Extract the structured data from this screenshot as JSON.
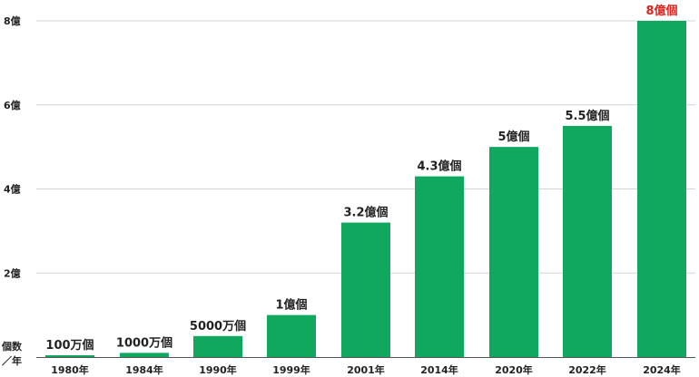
{
  "chart_data": {
    "type": "bar",
    "categories": [
      "1980年",
      "1984年",
      "1990年",
      "1999年",
      "2001年",
      "2014年",
      "2020年",
      "2022年",
      "2024年"
    ],
    "values": [
      0.01,
      0.1,
      0.5,
      1,
      3.2,
      4.3,
      5,
      5.5,
      8
    ],
    "data_labels": [
      "100万個",
      "1000万個",
      "5000万個",
      "1億個",
      "3.2億個",
      "4.3億個",
      "5億個",
      "5.5億個",
      "8億個"
    ],
    "highlight_index": 8,
    "y_ticks": [
      {
        "value": 2,
        "label": "2億"
      },
      {
        "value": 4,
        "label": "4億"
      },
      {
        "value": 6,
        "label": "6億"
      },
      {
        "value": 8,
        "label": "8億"
      }
    ],
    "ylim": [
      0,
      8
    ],
    "ylabel_top": "個数",
    "ylabel_bottom": "／年",
    "grid": true,
    "colors": {
      "bar": "#0fa85e",
      "highlight_label": "#e0201c",
      "label": "#222222",
      "grid": "#d4d4d4",
      "axis": "#555555"
    }
  }
}
